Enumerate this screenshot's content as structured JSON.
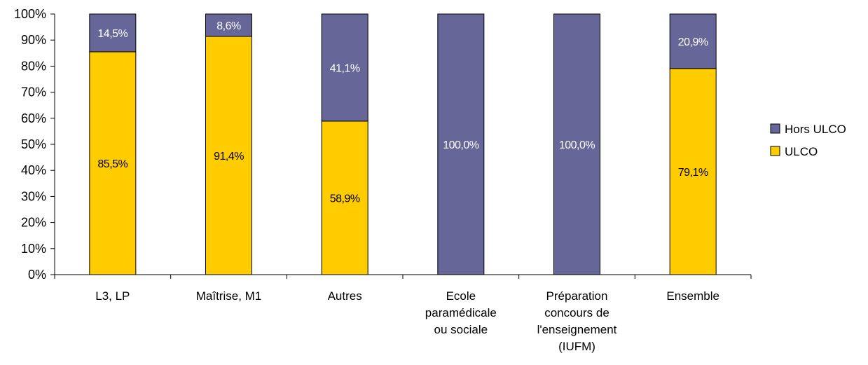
{
  "chart_data": {
    "type": "bar",
    "stacked": true,
    "percent": true,
    "categories": [
      [
        "L3, LP"
      ],
      [
        "Maîtrise, M1"
      ],
      [
        "Autres"
      ],
      [
        "Ecole",
        "paramédicale",
        "ou sociale"
      ],
      [
        "Préparation",
        "concours de",
        "l'enseignement",
        "(IUFM)"
      ],
      [
        "Ensemble"
      ]
    ],
    "series": [
      {
        "name": "ULCO",
        "color": "#FFCC00",
        "label_color": "#000000",
        "values": [
          85.5,
          91.4,
          58.9,
          0,
          0,
          79.1
        ],
        "labels": [
          "85,5%",
          "91,4%",
          "58,9%",
          "",
          "",
          "79,1%"
        ]
      },
      {
        "name": "Hors ULCO",
        "color": "#666699",
        "label_color": "#ffffff",
        "values": [
          14.5,
          8.6,
          41.1,
          100,
          100,
          20.9
        ],
        "labels": [
          "14,5%",
          "8,6%",
          "41,1%",
          "100,0%",
          "100,0%",
          "20,9%"
        ]
      }
    ],
    "ylim": [
      0,
      100
    ],
    "yticks": [
      "0%",
      "10%",
      "20%",
      "30%",
      "40%",
      "50%",
      "60%",
      "70%",
      "80%",
      "90%",
      "100%"
    ],
    "legend": [
      "Hors ULCO",
      "ULCO"
    ],
    "legend_position": "right",
    "grid": false
  }
}
